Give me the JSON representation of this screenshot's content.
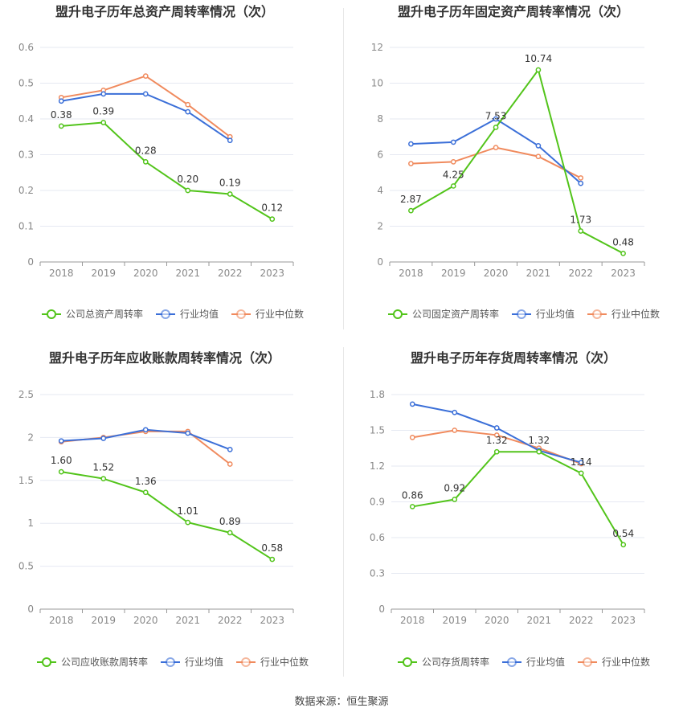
{
  "source": "数据来源：恒生聚源",
  "chart_data": [
    {
      "type": "line",
      "title": "盟升电子历年总资产周转率情况（次）",
      "x": [
        "2018",
        "2019",
        "2020",
        "2021",
        "2022",
        "2023"
      ],
      "ylim": [
        0,
        0.6
      ],
      "yticks": [
        "0",
        "0.1",
        "0.2",
        "0.3",
        "0.4",
        "0.5",
        "0.6"
      ],
      "grid": true,
      "legend": "bottom",
      "series": [
        {
          "name": "公司总资产周转率",
          "color": "#52c41a",
          "labeled": true,
          "values": [
            0.38,
            0.39,
            0.28,
            0.2,
            0.19,
            0.12
          ],
          "labels": [
            "0.38",
            "0.39",
            "0.28",
            "0.20",
            "0.19",
            "0.12"
          ]
        },
        {
          "name": "行业均值",
          "color": "#3b6fd8",
          "labeled": false,
          "values": [
            0.45,
            0.47,
            0.47,
            0.42,
            0.34,
            null
          ]
        },
        {
          "name": "行业中位数",
          "color": "#f08a5d",
          "labeled": false,
          "values": [
            0.46,
            0.48,
            0.52,
            0.44,
            0.35,
            null
          ]
        }
      ]
    },
    {
      "type": "line",
      "title": "盟升电子历年固定资产周转率情况（次）",
      "x": [
        "2018",
        "2019",
        "2020",
        "2021",
        "2022",
        "2023"
      ],
      "ylim": [
        0,
        12
      ],
      "yticks": [
        "0",
        "2",
        "4",
        "6",
        "8",
        "10",
        "12"
      ],
      "grid": true,
      "legend": "bottom",
      "series": [
        {
          "name": "公司固定资产周转率",
          "color": "#52c41a",
          "labeled": true,
          "values": [
            2.87,
            4.25,
            7.53,
            10.74,
            1.73,
            0.48
          ],
          "labels": [
            "2.87",
            "4.25",
            "7.53",
            "10.74",
            "1.73",
            "0.48"
          ]
        },
        {
          "name": "行业均值",
          "color": "#3b6fd8",
          "labeled": false,
          "values": [
            6.6,
            6.7,
            8.0,
            6.5,
            4.4,
            null
          ]
        },
        {
          "name": "行业中位数",
          "color": "#f08a5d",
          "labeled": false,
          "values": [
            5.5,
            5.6,
            6.4,
            5.9,
            4.7,
            null
          ]
        }
      ]
    },
    {
      "type": "line",
      "title": "盟升电子历年应收账款周转率情况（次）",
      "x": [
        "2018",
        "2019",
        "2020",
        "2021",
        "2022",
        "2023"
      ],
      "ylim": [
        0,
        2.5
      ],
      "yticks": [
        "0",
        "0.5",
        "1",
        "1.5",
        "2",
        "2.5"
      ],
      "grid": true,
      "legend": "bottom",
      "series": [
        {
          "name": "公司应收账款周转率",
          "color": "#52c41a",
          "labeled": true,
          "values": [
            1.6,
            1.52,
            1.36,
            1.01,
            0.89,
            0.58
          ],
          "labels": [
            "1.60",
            "1.52",
            "1.36",
            "1.01",
            "0.89",
            "0.58"
          ]
        },
        {
          "name": "行业均值",
          "color": "#3b6fd8",
          "labeled": false,
          "values": [
            1.96,
            1.99,
            2.09,
            2.05,
            1.86,
            null
          ]
        },
        {
          "name": "行业中位数",
          "color": "#f08a5d",
          "labeled": false,
          "values": [
            1.95,
            2.0,
            2.07,
            2.07,
            1.69,
            null
          ]
        }
      ]
    },
    {
      "type": "line",
      "title": "盟升电子历年存货周转率情况（次）",
      "x": [
        "2018",
        "2019",
        "2020",
        "2021",
        "2022",
        "2023"
      ],
      "ylim": [
        0,
        1.8
      ],
      "yticks": [
        "0",
        "0.3",
        "0.6",
        "0.9",
        "1.2",
        "1.5",
        "1.8"
      ],
      "grid": true,
      "legend": "bottom",
      "series": [
        {
          "name": "公司存货周转率",
          "color": "#52c41a",
          "labeled": true,
          "values": [
            0.86,
            0.92,
            1.32,
            1.32,
            1.14,
            0.54
          ],
          "labels": [
            "0.86",
            "0.92",
            "1.32",
            "1.32",
            "1.14",
            "0.54"
          ]
        },
        {
          "name": "行业均值",
          "color": "#3b6fd8",
          "labeled": false,
          "values": [
            1.72,
            1.65,
            1.52,
            1.33,
            1.23,
            null
          ]
        },
        {
          "name": "行业中位数",
          "color": "#f08a5d",
          "labeled": false,
          "values": [
            1.44,
            1.5,
            1.46,
            1.35,
            1.22,
            null
          ]
        }
      ]
    }
  ]
}
